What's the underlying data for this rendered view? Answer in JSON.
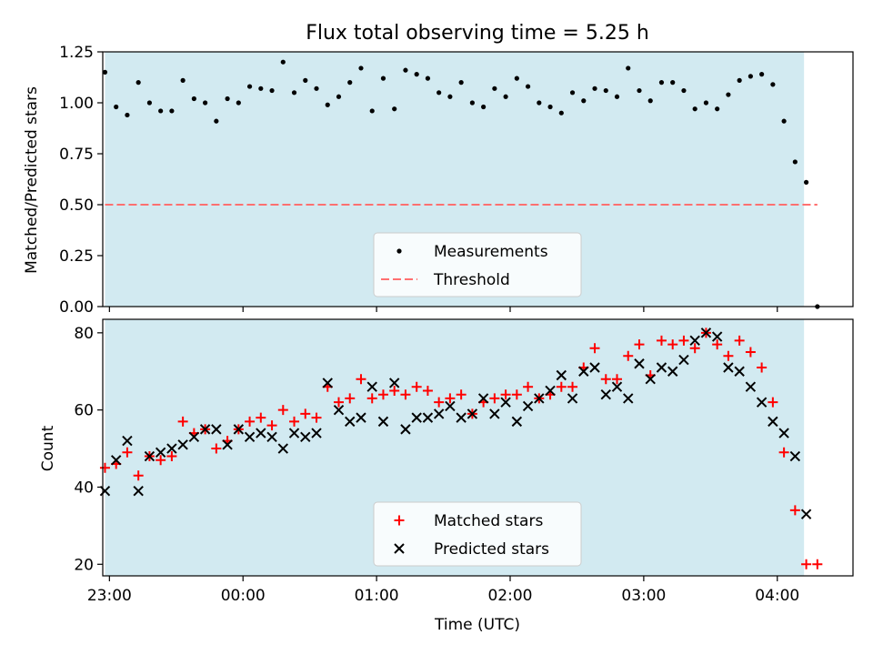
{
  "chart_data": [
    {
      "type": "scatter",
      "title": "Flux total observing time = 5.25 h",
      "xlabel": "",
      "ylabel": "Matched/Predicted stars",
      "xlim": [
        "22:57",
        "04:34"
      ],
      "ylim": [
        0,
        1.25
      ],
      "yticks": [
        "0.00",
        "0.25",
        "0.50",
        "0.75",
        "1.00",
        "1.25"
      ],
      "grid": false,
      "legend": "lower-center",
      "shaded_x_range": [
        "22:58",
        "04:12"
      ],
      "series": [
        {
          "name": "Measurements",
          "style": "dot",
          "color": "#000000",
          "points": [
            [
              "22:58",
              1.15
            ],
            [
              "23:03",
              0.98
            ],
            [
              "23:08",
              0.94
            ],
            [
              "23:13",
              1.1
            ],
            [
              "23:18",
              1.0
            ],
            [
              "23:23",
              0.96
            ],
            [
              "23:28",
              0.96
            ],
            [
              "23:33",
              1.11
            ],
            [
              "23:38",
              1.02
            ],
            [
              "23:43",
              1.0
            ],
            [
              "23:48",
              0.91
            ],
            [
              "23:53",
              1.02
            ],
            [
              "23:58",
              1.0
            ],
            [
              "00:03",
              1.08
            ],
            [
              "00:08",
              1.07
            ],
            [
              "00:13",
              1.06
            ],
            [
              "00:18",
              1.2
            ],
            [
              "00:23",
              1.05
            ],
            [
              "00:28",
              1.11
            ],
            [
              "00:33",
              1.07
            ],
            [
              "00:38",
              0.99
            ],
            [
              "00:43",
              1.03
            ],
            [
              "00:48",
              1.1
            ],
            [
              "00:53",
              1.17
            ],
            [
              "00:58",
              0.96
            ],
            [
              "01:03",
              1.12
            ],
            [
              "01:08",
              0.97
            ],
            [
              "01:13",
              1.16
            ],
            [
              "01:18",
              1.14
            ],
            [
              "01:23",
              1.12
            ],
            [
              "01:28",
              1.05
            ],
            [
              "01:33",
              1.03
            ],
            [
              "01:38",
              1.1
            ],
            [
              "01:43",
              1.0
            ],
            [
              "01:48",
              0.98
            ],
            [
              "01:53",
              1.07
            ],
            [
              "01:58",
              1.03
            ],
            [
              "02:03",
              1.12
            ],
            [
              "02:08",
              1.08
            ],
            [
              "02:13",
              1.0
            ],
            [
              "02:18",
              0.98
            ],
            [
              "02:23",
              0.95
            ],
            [
              "02:28",
              1.05
            ],
            [
              "02:33",
              1.01
            ],
            [
              "02:38",
              1.07
            ],
            [
              "02:43",
              1.06
            ],
            [
              "02:48",
              1.03
            ],
            [
              "02:53",
              1.17
            ],
            [
              "02:58",
              1.06
            ],
            [
              "03:03",
              1.01
            ],
            [
              "03:08",
              1.1
            ],
            [
              "03:13",
              1.1
            ],
            [
              "03:18",
              1.06
            ],
            [
              "03:23",
              0.97
            ],
            [
              "03:28",
              1.0
            ],
            [
              "03:33",
              0.97
            ],
            [
              "03:38",
              1.04
            ],
            [
              "03:43",
              1.11
            ],
            [
              "03:48",
              1.13
            ],
            [
              "03:53",
              1.14
            ],
            [
              "03:58",
              1.09
            ],
            [
              "04:03",
              0.91
            ],
            [
              "04:08",
              0.71
            ],
            [
              "04:13",
              0.61
            ],
            [
              "04:18",
              0.0
            ]
          ]
        },
        {
          "name": "Threshold",
          "style": "dashed-line",
          "color": "#ff7070",
          "points": [
            [
              "22:58",
              0.5
            ],
            [
              "04:18",
              0.5
            ]
          ]
        }
      ]
    },
    {
      "type": "scatter",
      "title": "",
      "xlabel": "Time (UTC)",
      "ylabel": "Count",
      "xlim": [
        "22:57",
        "04:34"
      ],
      "ylim": [
        17,
        83.5
      ],
      "yticks": [
        "20",
        "40",
        "60",
        "80"
      ],
      "xticks": [
        "23:00",
        "00:00",
        "01:00",
        "02:00",
        "03:00",
        "04:00"
      ],
      "grid": false,
      "legend": "lower-center",
      "shaded_x_range": [
        "22:58",
        "04:12"
      ],
      "series": [
        {
          "name": "Matched stars",
          "style": "plus",
          "color": "#ff0000",
          "points": [
            [
              "22:58",
              45
            ],
            [
              "23:03",
              46
            ],
            [
              "23:08",
              49
            ],
            [
              "23:13",
              43
            ],
            [
              "23:18",
              48
            ],
            [
              "23:23",
              47
            ],
            [
              "23:28",
              48
            ],
            [
              "23:33",
              57
            ],
            [
              "23:38",
              54
            ],
            [
              "23:43",
              55
            ],
            [
              "23:48",
              50
            ],
            [
              "23:53",
              52
            ],
            [
              "23:58",
              55
            ],
            [
              "00:03",
              57
            ],
            [
              "00:08",
              58
            ],
            [
              "00:13",
              56
            ],
            [
              "00:18",
              60
            ],
            [
              "00:23",
              57
            ],
            [
              "00:28",
              59
            ],
            [
              "00:33",
              58
            ],
            [
              "00:38",
              66
            ],
            [
              "00:43",
              62
            ],
            [
              "00:48",
              63
            ],
            [
              "00:53",
              68
            ],
            [
              "00:58",
              63
            ],
            [
              "01:03",
              64
            ],
            [
              "01:08",
              65
            ],
            [
              "01:13",
              64
            ],
            [
              "01:18",
              66
            ],
            [
              "01:23",
              65
            ],
            [
              "01:28",
              62
            ],
            [
              "01:33",
              63
            ],
            [
              "01:38",
              64
            ],
            [
              "01:43",
              59
            ],
            [
              "01:48",
              62
            ],
            [
              "01:53",
              63
            ],
            [
              "01:58",
              64
            ],
            [
              "02:03",
              64
            ],
            [
              "02:08",
              66
            ],
            [
              "02:13",
              63
            ],
            [
              "02:18",
              64
            ],
            [
              "02:23",
              66
            ],
            [
              "02:28",
              66
            ],
            [
              "02:33",
              71
            ],
            [
              "02:38",
              76
            ],
            [
              "02:43",
              68
            ],
            [
              "02:48",
              68
            ],
            [
              "02:53",
              74
            ],
            [
              "02:58",
              77
            ],
            [
              "03:03",
              69
            ],
            [
              "03:08",
              78
            ],
            [
              "03:13",
              77
            ],
            [
              "03:18",
              78
            ],
            [
              "03:23",
              76
            ],
            [
              "03:28",
              80
            ],
            [
              "03:33",
              77
            ],
            [
              "03:38",
              74
            ],
            [
              "03:43",
              78
            ],
            [
              "03:48",
              75
            ],
            [
              "03:53",
              71
            ],
            [
              "03:58",
              62
            ],
            [
              "04:03",
              49
            ],
            [
              "04:08",
              34
            ],
            [
              "04:13",
              20
            ],
            [
              "04:18",
              20
            ]
          ]
        },
        {
          "name": "Predicted stars",
          "style": "x",
          "color": "#000000",
          "points": [
            [
              "22:58",
              39
            ],
            [
              "23:03",
              47
            ],
            [
              "23:08",
              52
            ],
            [
              "23:13",
              39
            ],
            [
              "23:18",
              48
            ],
            [
              "23:23",
              49
            ],
            [
              "23:28",
              50
            ],
            [
              "23:33",
              51
            ],
            [
              "23:38",
              53
            ],
            [
              "23:43",
              55
            ],
            [
              "23:48",
              55
            ],
            [
              "23:53",
              51
            ],
            [
              "23:58",
              55
            ],
            [
              "00:03",
              53
            ],
            [
              "00:08",
              54
            ],
            [
              "00:13",
              53
            ],
            [
              "00:18",
              50
            ],
            [
              "00:23",
              54
            ],
            [
              "00:28",
              53
            ],
            [
              "00:33",
              54
            ],
            [
              "00:38",
              67
            ],
            [
              "00:43",
              60
            ],
            [
              "00:48",
              57
            ],
            [
              "00:53",
              58
            ],
            [
              "00:58",
              66
            ],
            [
              "01:03",
              57
            ],
            [
              "01:08",
              67
            ],
            [
              "01:13",
              55
            ],
            [
              "01:18",
              58
            ],
            [
              "01:23",
              58
            ],
            [
              "01:28",
              59
            ],
            [
              "01:33",
              61
            ],
            [
              "01:38",
              58
            ],
            [
              "01:43",
              59
            ],
            [
              "01:48",
              63
            ],
            [
              "01:53",
              59
            ],
            [
              "01:58",
              62
            ],
            [
              "02:03",
              57
            ],
            [
              "02:08",
              61
            ],
            [
              "02:13",
              63
            ],
            [
              "02:18",
              65
            ],
            [
              "02:23",
              69
            ],
            [
              "02:28",
              63
            ],
            [
              "02:33",
              70
            ],
            [
              "02:38",
              71
            ],
            [
              "02:43",
              64
            ],
            [
              "02:48",
              66
            ],
            [
              "02:53",
              63
            ],
            [
              "02:58",
              72
            ],
            [
              "03:03",
              68
            ],
            [
              "03:08",
              71
            ],
            [
              "03:13",
              70
            ],
            [
              "03:18",
              73
            ],
            [
              "03:23",
              78
            ],
            [
              "03:28",
              80
            ],
            [
              "03:33",
              79
            ],
            [
              "03:38",
              71
            ],
            [
              "03:43",
              70
            ],
            [
              "03:48",
              66
            ],
            [
              "03:53",
              62
            ],
            [
              "03:58",
              57
            ],
            [
              "04:03",
              54
            ],
            [
              "04:08",
              48
            ],
            [
              "04:13",
              33
            ]
          ]
        }
      ]
    }
  ],
  "colors": {
    "shade": "#add8e6",
    "threshold": "#ff7070",
    "matched": "#ff0000",
    "predicted": "#000000"
  }
}
